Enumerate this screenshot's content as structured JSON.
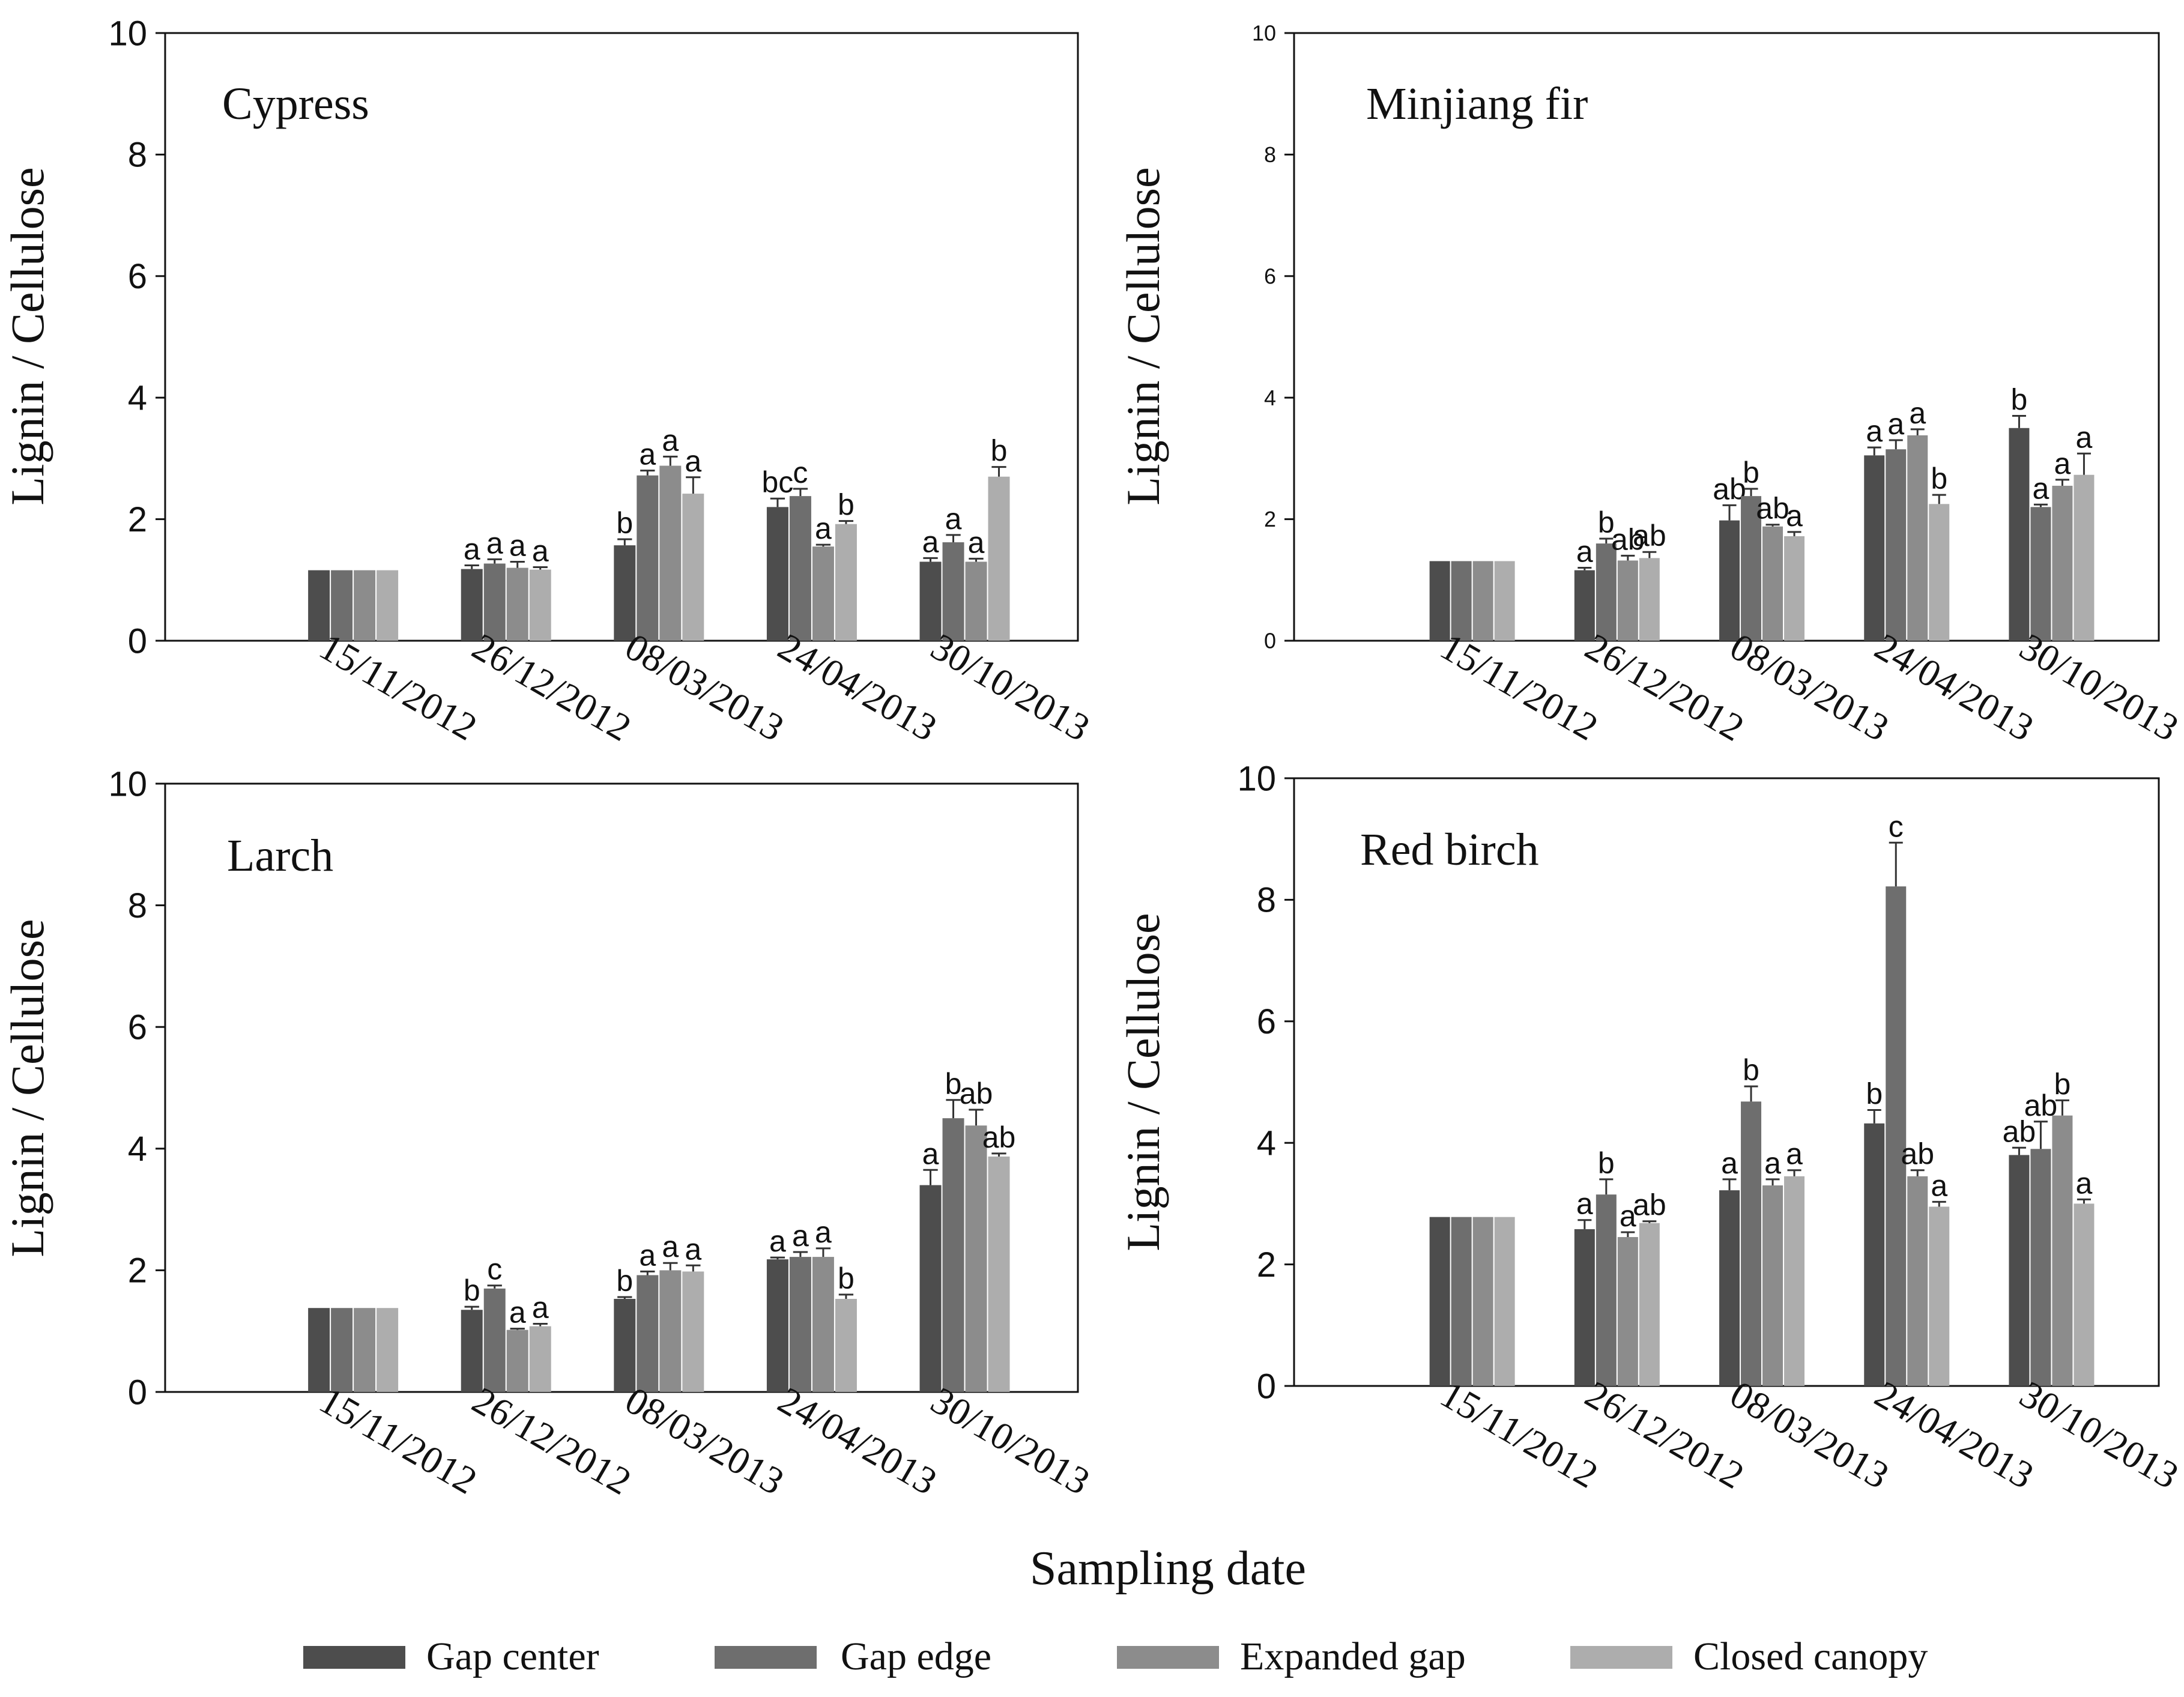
{
  "figure": {
    "xlabel": "Sampling date",
    "ylabel": "Lignin / Cellulose",
    "legend": [
      {
        "name": "Gap center",
        "color": "#4d4d4d"
      },
      {
        "name": "Gap edge",
        "color": "#6e6e6e"
      },
      {
        "name": "Expanded gap",
        "color": "#8c8c8c"
      },
      {
        "name": "Closed canopy",
        "color": "#adadad"
      }
    ]
  },
  "chart_data": [
    {
      "type": "bar",
      "title": "Cypress",
      "xlabel": "",
      "ylabel": "Lignin / Cellulose",
      "ylim": [
        0,
        10
      ],
      "yticks": [
        "0",
        "2",
        "4",
        "6",
        "8",
        "10"
      ],
      "categories": [
        "15/11/2012",
        "26/12/2012",
        "08/03/2013",
        "24/04/2013",
        "30/10/2013"
      ],
      "series": [
        {
          "name": "Gap center",
          "values": [
            1.16,
            1.18,
            1.57,
            2.2,
            1.3
          ],
          "errors": [
            0,
            0.06,
            0.1,
            0.14,
            0.06
          ],
          "letters": [
            "",
            "a",
            "b",
            "bc",
            "a"
          ]
        },
        {
          "name": "Gap edge",
          "values": [
            1.16,
            1.27,
            2.72,
            2.38,
            1.62
          ],
          "errors": [
            0,
            0.07,
            0.08,
            0.12,
            0.12
          ],
          "letters": [
            "",
            "a",
            "a",
            "c",
            "a"
          ]
        },
        {
          "name": "Expanded gap",
          "values": [
            1.16,
            1.2,
            2.88,
            1.55,
            1.3
          ],
          "errors": [
            0,
            0.1,
            0.15,
            0.03,
            0.05
          ],
          "letters": [
            "",
            "a",
            "a",
            "a",
            "a"
          ]
        },
        {
          "name": "Closed canopy",
          "values": [
            1.16,
            1.17,
            2.42,
            1.92,
            2.7
          ],
          "errors": [
            0,
            0.04,
            0.27,
            0.05,
            0.16
          ],
          "letters": [
            "",
            "a",
            "a",
            "b",
            "b"
          ]
        }
      ]
    },
    {
      "type": "bar",
      "title": "Minjiang fir",
      "xlabel": "",
      "ylabel": "Lignin / Cellulose",
      "ylim": [
        0,
        10
      ],
      "yticks": [
        "0",
        "2",
        "4",
        "6",
        "8",
        "10"
      ],
      "categories": [
        "15/11/2012",
        "26/12/2012",
        "08/03/2013",
        "24/04/2013",
        "30/10/2013"
      ],
      "series": [
        {
          "name": "Gap center",
          "values": [
            1.31,
            1.16,
            1.98,
            3.05,
            3.5
          ],
          "errors": [
            0,
            0.04,
            0.25,
            0.13,
            0.2
          ],
          "letters": [
            "",
            "a",
            "ab",
            "a",
            "b"
          ]
        },
        {
          "name": "Gap edge",
          "values": [
            1.31,
            1.6,
            2.38,
            3.15,
            2.2
          ],
          "errors": [
            0,
            0.08,
            0.12,
            0.15,
            0.04
          ],
          "letters": [
            "",
            "b",
            "b",
            "a",
            "a"
          ]
        },
        {
          "name": "Expanded gap",
          "values": [
            1.31,
            1.32,
            1.88,
            3.38,
            2.55
          ],
          "errors": [
            0,
            0.08,
            0.03,
            0.1,
            0.1
          ],
          "letters": [
            "",
            "ab",
            "ab",
            "a",
            "a"
          ]
        },
        {
          "name": "Closed canopy",
          "values": [
            1.31,
            1.36,
            1.72,
            2.25,
            2.73
          ],
          "errors": [
            0,
            0.1,
            0.07,
            0.15,
            0.35
          ],
          "letters": [
            "",
            "ab",
            "a",
            "b",
            "a"
          ]
        }
      ]
    },
    {
      "type": "bar",
      "title": "Larch",
      "xlabel": "",
      "ylabel": "Lignin / Cellulose",
      "ylim": [
        0,
        10
      ],
      "yticks": [
        "0",
        "2",
        "4",
        "6",
        "8",
        "10"
      ],
      "categories": [
        "15/11/2012",
        "26/12/2012",
        "08/03/2013",
        "24/04/2013",
        "30/10/2013"
      ],
      "series": [
        {
          "name": "Gap center",
          "values": [
            1.38,
            1.35,
            1.53,
            2.18,
            3.4
          ],
          "errors": [
            0,
            0.05,
            0.03,
            0.03,
            0.25
          ],
          "letters": [
            "",
            "b",
            "b",
            "a",
            "a"
          ]
        },
        {
          "name": "Gap edge",
          "values": [
            1.38,
            1.7,
            1.92,
            2.22,
            4.5
          ],
          "errors": [
            0,
            0.05,
            0.06,
            0.08,
            0.3
          ],
          "letters": [
            "",
            "c",
            "a",
            "a",
            "b"
          ]
        },
        {
          "name": "Expanded gap",
          "values": [
            1.38,
            1.02,
            2.0,
            2.22,
            4.38
          ],
          "errors": [
            0,
            0.02,
            0.12,
            0.14,
            0.26
          ],
          "letters": [
            "",
            "a",
            "a",
            "a",
            "ab"
          ]
        },
        {
          "name": "Closed canopy",
          "values": [
            1.38,
            1.08,
            1.98,
            1.53,
            3.87
          ],
          "errors": [
            0,
            0.04,
            0.1,
            0.07,
            0.05
          ],
          "letters": [
            "",
            "a",
            "a",
            "b",
            "ab"
          ]
        }
      ]
    },
    {
      "type": "bar",
      "title": "Red birch",
      "xlabel": "",
      "ylabel": "Lignin / Cellulose",
      "ylim": [
        0,
        10
      ],
      "yticks": [
        "0",
        "2",
        "4",
        "6",
        "8",
        "10"
      ],
      "categories": [
        "15/11/2012",
        "26/12/2012",
        "08/03/2013",
        "24/04/2013",
        "30/10/2013"
      ],
      "series": [
        {
          "name": "Gap center",
          "values": [
            2.78,
            2.58,
            3.22,
            4.32,
            3.8
          ],
          "errors": [
            0,
            0.15,
            0.18,
            0.22,
            0.12
          ],
          "letters": [
            "",
            "a",
            "a",
            "b",
            "ab"
          ]
        },
        {
          "name": "Gap edge",
          "values": [
            2.78,
            3.15,
            4.68,
            8.22,
            3.9
          ],
          "errors": [
            0,
            0.25,
            0.25,
            0.72,
            0.45
          ],
          "letters": [
            "",
            "b",
            "b",
            "c",
            "ab"
          ]
        },
        {
          "name": "Expanded gap",
          "values": [
            2.78,
            2.45,
            3.3,
            3.45,
            4.45
          ],
          "errors": [
            0,
            0.08,
            0.1,
            0.1,
            0.25
          ],
          "letters": [
            "",
            "a",
            "a",
            "ab",
            "b"
          ]
        },
        {
          "name": "Closed canopy",
          "values": [
            2.78,
            2.68,
            3.45,
            2.95,
            3.0
          ],
          "errors": [
            0,
            0.03,
            0.1,
            0.08,
            0.07
          ],
          "letters": [
            "",
            "ab",
            "a",
            "a",
            "a"
          ]
        }
      ]
    }
  ]
}
